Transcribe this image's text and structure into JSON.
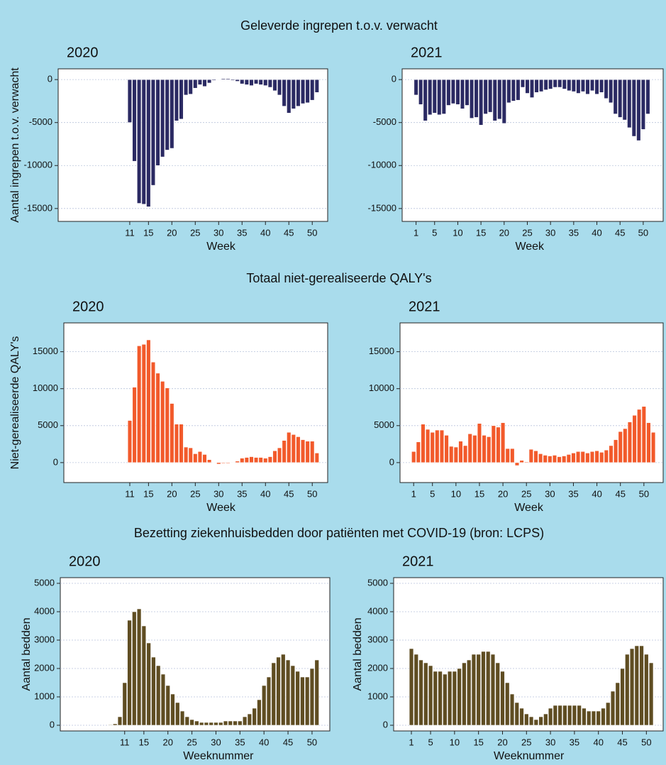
{
  "sections": [
    "Geleverde ingrepen t.o.v. verwacht",
    "Totaal niet-gerealiseerde QALY's",
    "Bezetting ziekenhuisbedden door patiënten met COVID-19 (bron: LCPS)"
  ],
  "chart_data": [
    {
      "type": "bar",
      "title": "2020",
      "xlabel": "Week",
      "ylabel": "Aantal ingrepen t.o.v. verwacht",
      "color": "#2b2a63",
      "grid": true,
      "xlim": [
        -4.3,
        53.3
      ],
      "xticks": [
        11,
        15,
        20,
        25,
        30,
        35,
        40,
        45,
        50
      ],
      "ylim": [
        -16500,
        1250
      ],
      "yticks": [
        -15000,
        -10000,
        -5000,
        0
      ],
      "x": [
        11,
        12,
        13,
        14,
        15,
        16,
        17,
        18,
        19,
        20,
        21,
        22,
        23,
        24,
        25,
        26,
        27,
        28,
        29,
        30,
        31,
        32,
        33,
        34,
        35,
        36,
        37,
        38,
        39,
        40,
        41,
        42,
        43,
        44,
        45,
        46,
        47,
        48,
        49,
        50,
        51
      ],
      "values": [
        -5000,
        -9500,
        -14400,
        -14500,
        -14800,
        -12300,
        -10000,
        -9000,
        -8200,
        -8000,
        -4800,
        -4600,
        -1800,
        -1700,
        -1000,
        -600,
        -800,
        -400,
        -100,
        50,
        100,
        100,
        -100,
        -200,
        -500,
        -600,
        -700,
        -500,
        -600,
        -700,
        -900,
        -1300,
        -1800,
        -3100,
        -3900,
        -3400,
        -3100,
        -2800,
        -2700,
        -2400,
        -1500
      ]
    },
    {
      "type": "bar",
      "title": "2021",
      "xlabel": "Week",
      "color": "#2b2a63",
      "grid": true,
      "xlim": [
        -2,
        54.3
      ],
      "xticks": [
        1,
        5,
        10,
        15,
        20,
        25,
        30,
        35,
        40,
        45,
        50
      ],
      "ylim": [
        -16500,
        1250
      ],
      "yticks": [
        -15000,
        -10000,
        -5000,
        0
      ],
      "x": [
        1,
        2,
        3,
        4,
        5,
        6,
        7,
        8,
        9,
        10,
        11,
        12,
        13,
        14,
        15,
        16,
        17,
        18,
        19,
        20,
        21,
        22,
        23,
        24,
        25,
        26,
        27,
        28,
        29,
        30,
        31,
        32,
        33,
        34,
        35,
        36,
        37,
        38,
        39,
        40,
        41,
        42,
        43,
        44,
        45,
        46,
        47,
        48,
        49,
        50,
        51
      ],
      "values": [
        -1800,
        -2900,
        -4800,
        -4100,
        -3900,
        -4100,
        -4000,
        -3000,
        -2800,
        -2900,
        -3400,
        -3000,
        -4500,
        -4400,
        -5300,
        -4000,
        -3800,
        -4800,
        -4600,
        -5100,
        -2700,
        -2500,
        -2400,
        -900,
        -1600,
        -2100,
        -1500,
        -1400,
        -1200,
        -1100,
        -900,
        -900,
        -1100,
        -1300,
        -1400,
        -1600,
        -1400,
        -1700,
        -1300,
        -1700,
        -1500,
        -2200,
        -2700,
        -4000,
        -4400,
        -4700,
        -5600,
        -6600,
        -7100,
        -5800,
        -4000
      ]
    },
    {
      "type": "bar",
      "title": "2020",
      "xlabel": "Week",
      "ylabel": "Niet-gerealiseerde QALY's",
      "color": "#f25a2b",
      "grid": true,
      "xlim": [
        -3.1,
        53.3
      ],
      "xticks": [
        11,
        15,
        20,
        25,
        30,
        35,
        40,
        45,
        50
      ],
      "ylim": [
        -2700,
        18900
      ],
      "yticks": [
        0,
        5000,
        10000,
        15000
      ],
      "x": [
        11,
        12,
        13,
        14,
        15,
        16,
        17,
        18,
        19,
        20,
        21,
        22,
        23,
        24,
        25,
        26,
        27,
        28,
        29,
        30,
        31,
        32,
        33,
        34,
        35,
        36,
        37,
        38,
        39,
        40,
        41,
        42,
        43,
        44,
        45,
        46,
        47,
        48,
        49,
        50,
        51
      ],
      "values": [
        5700,
        10200,
        15800,
        16000,
        16600,
        13600,
        12100,
        11000,
        10100,
        8000,
        5200,
        5200,
        2100,
        2000,
        1200,
        1500,
        1100,
        400,
        -50,
        -200,
        -100,
        -100,
        0,
        200,
        600,
        700,
        800,
        700,
        700,
        600,
        800,
        1600,
        2000,
        3000,
        4100,
        3800,
        3500,
        3100,
        2900,
        2900,
        1300
      ]
    },
    {
      "type": "bar",
      "title": "2021",
      "xlabel": "Week",
      "color": "#f25a2b",
      "grid": true,
      "xlim": [
        -1.9,
        54.1
      ],
      "xticks": [
        1,
        5,
        10,
        15,
        20,
        25,
        30,
        35,
        40,
        45,
        50
      ],
      "ylim": [
        -2700,
        18900
      ],
      "yticks": [
        0,
        5000,
        10000,
        15000
      ],
      "x": [
        1,
        2,
        3,
        4,
        5,
        6,
        7,
        8,
        9,
        10,
        11,
        12,
        13,
        14,
        15,
        16,
        17,
        18,
        19,
        20,
        21,
        22,
        23,
        24,
        25,
        26,
        27,
        28,
        29,
        30,
        31,
        32,
        33,
        34,
        35,
        36,
        37,
        38,
        39,
        40,
        41,
        42,
        43,
        44,
        45,
        46,
        47,
        48,
        49,
        50,
        51,
        52
      ],
      "values": [
        1500,
        2800,
        5200,
        4500,
        4100,
        4400,
        4400,
        3700,
        2200,
        2100,
        2900,
        2300,
        3900,
        3700,
        5300,
        3700,
        3500,
        5000,
        4800,
        5400,
        1900,
        1900,
        -400,
        300,
        100,
        1800,
        1600,
        1200,
        1000,
        900,
        1000,
        800,
        900,
        1100,
        1300,
        1500,
        1500,
        1300,
        1500,
        1600,
        1400,
        1700,
        2300,
        3100,
        4200,
        4600,
        5500,
        6400,
        7200,
        7600,
        5400,
        4100
      ]
    },
    {
      "type": "bar",
      "title": "2020",
      "xlabel": "Weeknummer",
      "ylabel": "Aantal bedden",
      "color": "#5f4d22",
      "grid": true,
      "xlim": [
        -2.4,
        53.7
      ],
      "xticks": [
        11,
        15,
        20,
        25,
        30,
        35,
        40,
        45,
        50
      ],
      "ylim": [
        -200,
        5200
      ],
      "yticks": [
        0,
        1000,
        2000,
        3000,
        4000,
        5000
      ],
      "x": [
        8,
        9,
        10,
        11,
        12,
        13,
        14,
        15,
        16,
        17,
        18,
        19,
        20,
        21,
        22,
        23,
        24,
        25,
        26,
        27,
        28,
        29,
        30,
        31,
        32,
        33,
        34,
        35,
        36,
        37,
        38,
        39,
        40,
        41,
        42,
        43,
        44,
        45,
        46,
        47,
        48,
        49,
        50,
        51
      ],
      "values": [
        20,
        50,
        300,
        1500,
        3700,
        4000,
        4100,
        3500,
        2900,
        2400,
        2100,
        1800,
        1400,
        1100,
        800,
        500,
        300,
        200,
        150,
        100,
        100,
        100,
        100,
        100,
        150,
        150,
        150,
        150,
        300,
        400,
        600,
        900,
        1400,
        1700,
        2200,
        2400,
        2500,
        2300,
        2100,
        1900,
        1700,
        1700,
        2000,
        2300
      ]
    },
    {
      "type": "bar",
      "title": "2021",
      "xlabel": "Weeknummer",
      "ylabel": "Aantal bedden",
      "color": "#5f4d22",
      "grid": true,
      "xlim": [
        -2.7,
        53.5
      ],
      "xticks": [
        1,
        5,
        10,
        15,
        20,
        25,
        30,
        35,
        40,
        45,
        50
      ],
      "ylim": [
        -200,
        5200
      ],
      "yticks": [
        0,
        1000,
        2000,
        3000,
        4000,
        5000
      ],
      "x": [
        1,
        2,
        3,
        4,
        5,
        6,
        7,
        8,
        9,
        10,
        11,
        12,
        13,
        14,
        15,
        16,
        17,
        18,
        19,
        20,
        21,
        22,
        23,
        24,
        25,
        26,
        27,
        28,
        29,
        30,
        31,
        32,
        33,
        34,
        35,
        36,
        37,
        38,
        39,
        40,
        41,
        42,
        43,
        44,
        45,
        46,
        47,
        48,
        49,
        50,
        51
      ],
      "values": [
        2700,
        2500,
        2300,
        2200,
        2100,
        1900,
        1900,
        1800,
        1900,
        1900,
        2000,
        2200,
        2300,
        2500,
        2500,
        2600,
        2600,
        2500,
        2200,
        1900,
        1500,
        1100,
        800,
        600,
        400,
        300,
        200,
        300,
        400,
        600,
        700,
        700,
        700,
        700,
        700,
        700,
        600,
        500,
        500,
        500,
        600,
        800,
        1200,
        1500,
        2000,
        2500,
        2700,
        2800,
        2800,
        2500,
        2200
      ]
    }
  ]
}
